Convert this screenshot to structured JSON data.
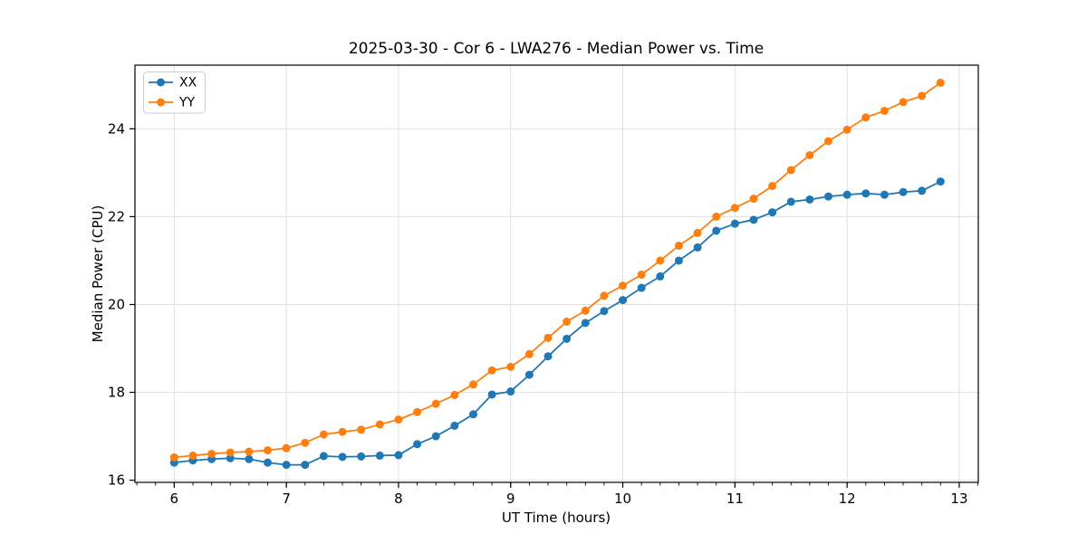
{
  "chart_data": {
    "type": "line",
    "title": "2025-03-30 - Cor 6 - LWA276 - Median Power vs. Time",
    "xlabel": "UT Time (hours)",
    "ylabel": "Median Power (CPU)",
    "x": [
      6,
      6.1667,
      6.3333,
      6.5,
      6.6667,
      6.8333,
      7,
      7.1667,
      7.3333,
      7.5,
      7.6667,
      7.8333,
      8,
      8.1667,
      8.3333,
      8.5,
      8.6667,
      8.8333,
      9,
      9.1667,
      9.3333,
      9.5,
      9.6667,
      9.8333,
      10,
      10.1667,
      10.3333,
      10.5,
      10.6667,
      10.8333,
      11,
      11.1667,
      11.3333,
      11.5,
      11.6667,
      11.8333,
      12,
      12.1667,
      12.3333,
      12.5,
      12.6667,
      12.8333
    ],
    "series": [
      {
        "name": "XX",
        "color": "#1f77b4",
        "marker": "circle",
        "values": [
          16.4,
          16.45,
          16.48,
          16.5,
          16.48,
          16.4,
          16.35,
          16.35,
          16.55,
          16.53,
          16.54,
          16.56,
          16.57,
          16.82,
          17.0,
          17.24,
          17.5,
          17.95,
          18.02,
          18.4,
          18.82,
          19.22,
          19.58,
          19.85,
          20.1,
          20.38,
          20.64,
          21.0,
          21.3,
          21.68,
          21.84,
          21.93,
          22.1,
          22.34,
          22.39,
          22.46,
          22.5,
          22.53,
          22.5,
          22.56,
          22.59,
          22.8
        ]
      },
      {
        "name": "YY",
        "color": "#ff7f0e",
        "marker": "circle",
        "values": [
          16.52,
          16.56,
          16.6,
          16.63,
          16.65,
          16.68,
          16.73,
          16.85,
          17.04,
          17.1,
          17.15,
          17.27,
          17.38,
          17.55,
          17.74,
          17.94,
          18.18,
          18.5,
          18.58,
          18.87,
          19.24,
          19.61,
          19.86,
          20.2,
          20.43,
          20.68,
          21.0,
          21.34,
          21.63,
          22.0,
          22.2,
          22.41,
          22.7,
          23.06,
          23.4,
          23.72,
          23.98,
          24.26,
          24.41,
          24.61,
          24.75,
          25.05
        ]
      }
    ],
    "xlim": [
      5.65,
      13.17
    ],
    "ylim": [
      15.95,
      25.45
    ],
    "xticks": [
      6,
      7,
      8,
      9,
      10,
      11,
      12,
      13
    ],
    "yticks": [
      16,
      18,
      20,
      22,
      24
    ],
    "x_minor_tick_step": 0.166667,
    "grid": true,
    "grid_color": "#e0e0e0",
    "axis_color": "#000000",
    "legend_position": "upper left"
  }
}
